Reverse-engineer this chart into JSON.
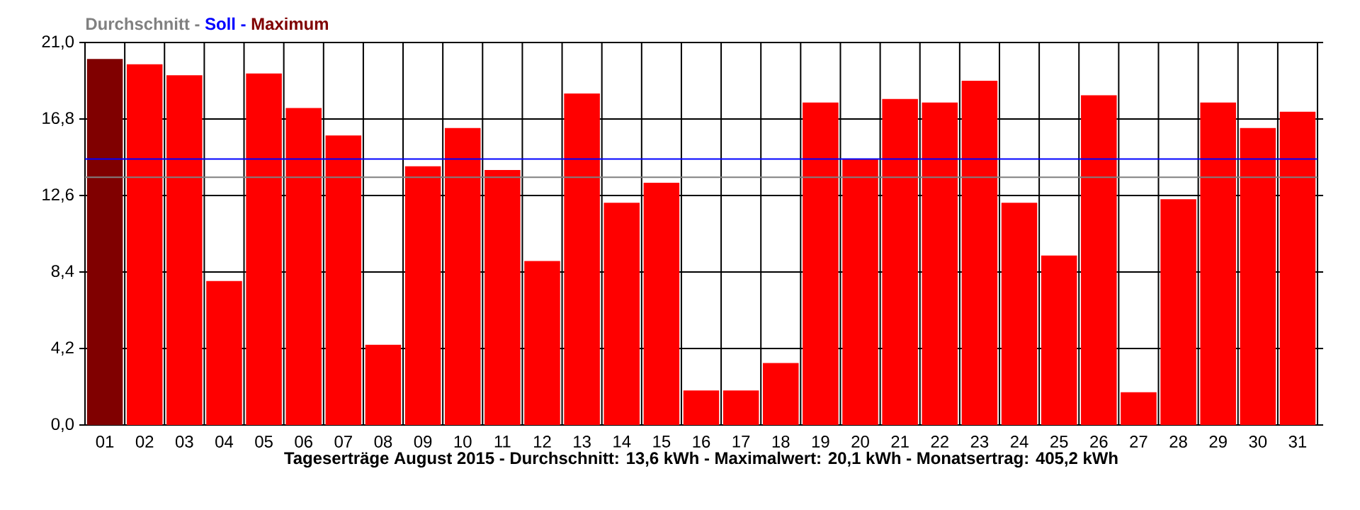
{
  "chart_data": {
    "type": "bar",
    "xlabel": "Tageserträge August 2015 - Durchschnitt: 13,6 kWh - Maximalwert: 20,1 kWh - Monatsertrag: 405,2 kWh",
    "categories": [
      "01",
      "02",
      "03",
      "04",
      "05",
      "06",
      "07",
      "08",
      "09",
      "10",
      "11",
      "12",
      "13",
      "14",
      "15",
      "16",
      "17",
      "18",
      "19",
      "20",
      "21",
      "22",
      "23",
      "24",
      "25",
      "26",
      "27",
      "28",
      "29",
      "30",
      "31"
    ],
    "values": [
      20.1,
      19.8,
      19.2,
      7.9,
      19.3,
      17.4,
      15.9,
      4.4,
      14.2,
      16.3,
      14.0,
      9.0,
      18.2,
      12.2,
      13.3,
      1.9,
      1.9,
      3.4,
      17.7,
      14.6,
      17.9,
      17.7,
      18.9,
      12.2,
      9.3,
      18.1,
      1.8,
      12.4,
      17.7,
      16.3,
      17.2
    ],
    "colors": [
      "#800000",
      "#ff0000",
      "#ff0000",
      "#ff0000",
      "#ff0000",
      "#ff0000",
      "#ff0000",
      "#ff0000",
      "#ff0000",
      "#ff0000",
      "#ff0000",
      "#ff0000",
      "#ff0000",
      "#ff0000",
      "#ff0000",
      "#ff0000",
      "#ff0000",
      "#ff0000",
      "#ff0000",
      "#ff0000",
      "#ff0000",
      "#ff0000",
      "#ff0000",
      "#ff0000",
      "#ff0000",
      "#ff0000",
      "#ff0000",
      "#ff0000",
      "#ff0000",
      "#ff0000",
      "#ff0000"
    ],
    "ylim": [
      0,
      21
    ],
    "yticks": [
      {
        "value": 0,
        "label": "0,0"
      },
      {
        "value": 4.2,
        "label": "4,2"
      },
      {
        "value": 8.4,
        "label": "8,4"
      },
      {
        "value": 12.6,
        "label": "12,6"
      },
      {
        "value": 16.8,
        "label": "16,8"
      },
      {
        "value": 21,
        "label": "21,0"
      }
    ],
    "grid": true,
    "legend": "top left",
    "ref_lines": [
      {
        "axis": "y",
        "value": 13.6,
        "label": "Durchschnitt -",
        "color": "#808080"
      },
      {
        "axis": "y",
        "value": 14.6,
        "label": "Soll -",
        "color": "#0000ff"
      }
    ],
    "annotations": [
      "Maximum"
    ]
  }
}
